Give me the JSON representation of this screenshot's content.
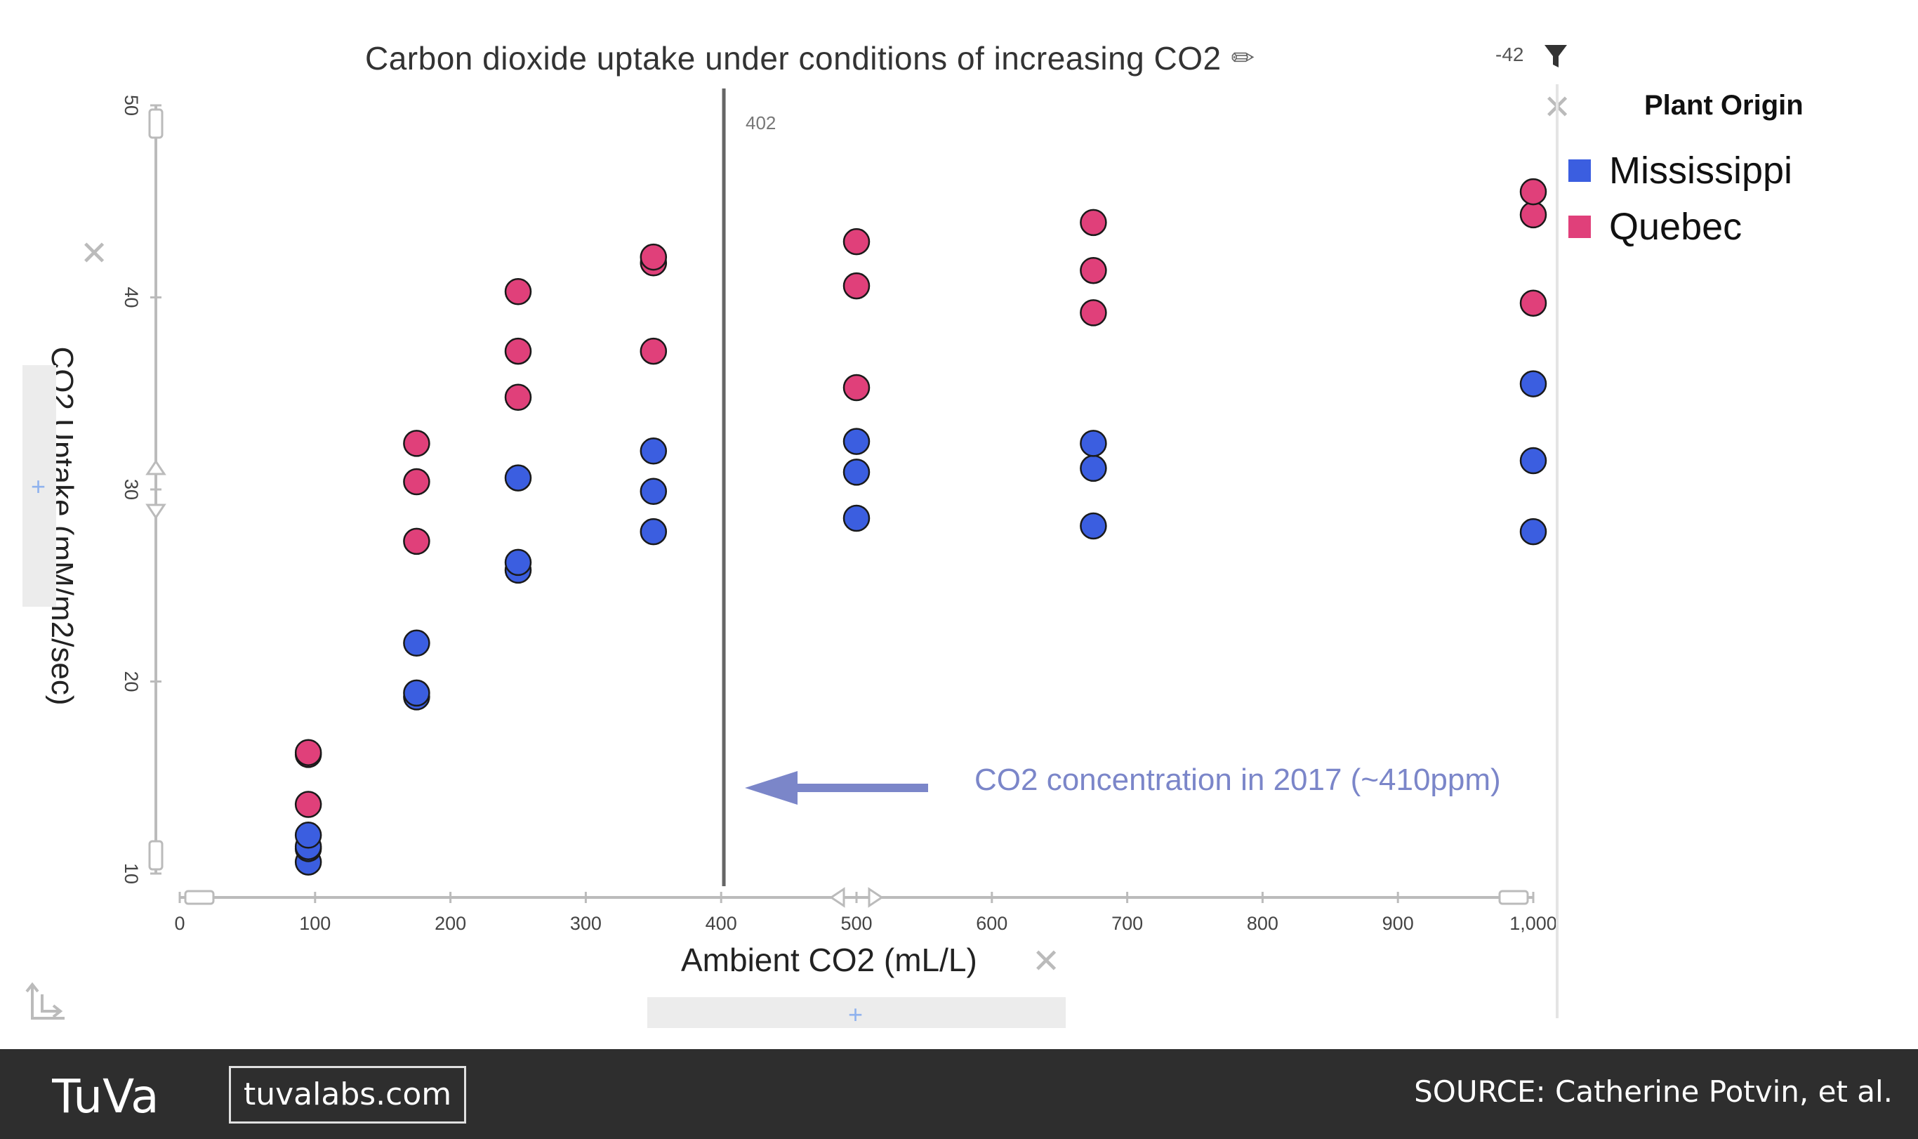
{
  "chart": {
    "title": "Carbon dioxide uptake under conditions of increasing CO2",
    "edit_glyph": "✏",
    "filter_count": "-42",
    "filter_icon": "funnel-icon",
    "ylabel": "CO2 Uptake (mM/m2/sec)",
    "xlabel": "Ambient CO2 (mL/L)",
    "marker_label": "402",
    "annotation": "CO2 concentration in 2017 (~410ppm)",
    "add_glyph": "+",
    "close_glyph": "✕"
  },
  "legend": {
    "title": "Plant Origin",
    "items": [
      {
        "label": "Mississippi",
        "color": "#3b5ee0"
      },
      {
        "label": "Quebec",
        "color": "#e0407a"
      }
    ]
  },
  "footer": {
    "logo_text": "TuVa",
    "link": "tuvalabs.com",
    "source": "SOURCE: Catherine Potvin, et al."
  },
  "chart_data": {
    "type": "scatter",
    "title": "Carbon dioxide uptake under conditions of increasing CO2",
    "xlabel": "Ambient CO2 (mL/L)",
    "ylabel": "CO2 Uptake (mM/m2/sec)",
    "xlim": [
      0,
      1000
    ],
    "ylim": [
      10,
      50
    ],
    "x_ticks": [
      "0",
      "100",
      "200",
      "300",
      "400",
      "500",
      "600",
      "700",
      "800",
      "900",
      "1,000"
    ],
    "y_ticks": [
      "10",
      "20",
      "30",
      "40",
      "50"
    ],
    "grid": false,
    "legend_position": "right",
    "reference_line": {
      "x": 402,
      "label": "402"
    },
    "annotation": {
      "text": "CO2 concentration in 2017 (~410ppm)",
      "points_to_x": 402
    },
    "series": [
      {
        "name": "Mississippi",
        "color": "#3b5ee0",
        "points": [
          [
            95,
            10.6
          ],
          [
            95,
            11.3
          ],
          [
            95,
            11.4
          ],
          [
            95,
            12.0
          ],
          [
            175,
            19.2
          ],
          [
            175,
            19.4
          ],
          [
            175,
            22.0
          ],
          [
            250,
            25.8
          ],
          [
            250,
            26.2
          ],
          [
            250,
            30.6
          ],
          [
            350,
            27.8
          ],
          [
            350,
            29.9
          ],
          [
            350,
            32.0
          ],
          [
            500,
            28.5
          ],
          [
            500,
            30.9
          ],
          [
            500,
            32.5
          ],
          [
            675,
            28.1
          ],
          [
            675,
            31.1
          ],
          [
            675,
            32.4
          ],
          [
            1000,
            27.8
          ],
          [
            1000,
            31.5
          ],
          [
            1000,
            35.5
          ]
        ]
      },
      {
        "name": "Quebec",
        "color": "#e0407a",
        "points": [
          [
            95,
            13.6
          ],
          [
            95,
            16.2
          ],
          [
            95,
            16.3
          ],
          [
            175,
            27.3
          ],
          [
            175,
            30.4
          ],
          [
            175,
            32.4
          ],
          [
            250,
            34.8
          ],
          [
            250,
            37.2
          ],
          [
            250,
            40.3
          ],
          [
            350,
            37.2
          ],
          [
            350,
            41.8
          ],
          [
            350,
            42.1
          ],
          [
            500,
            35.3
          ],
          [
            500,
            40.6
          ],
          [
            500,
            42.9
          ],
          [
            675,
            39.2
          ],
          [
            675,
            41.4
          ],
          [
            675,
            43.9
          ],
          [
            1000,
            39.7
          ],
          [
            1000,
            44.3
          ],
          [
            1000,
            45.5
          ]
        ]
      }
    ]
  }
}
